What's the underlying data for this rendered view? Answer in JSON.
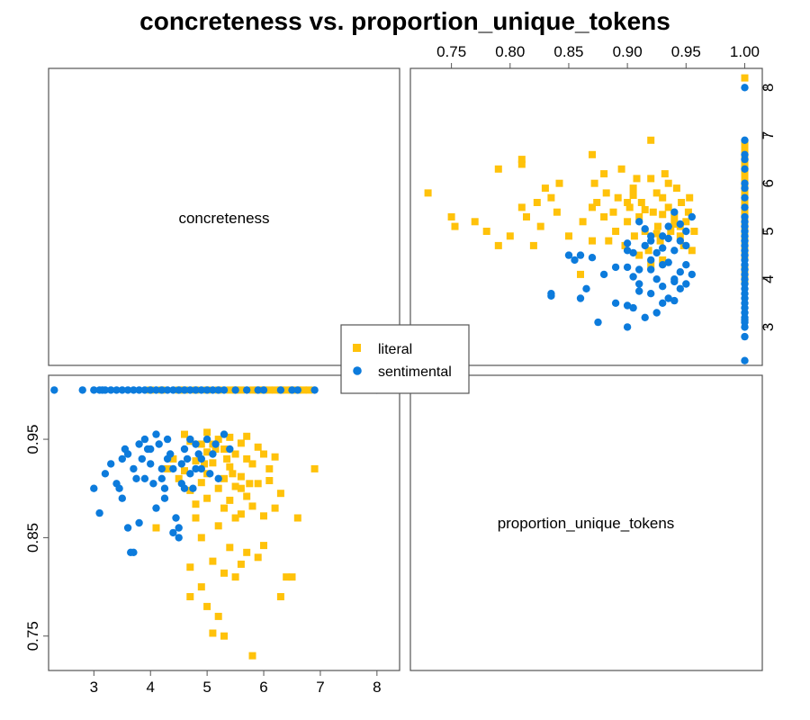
{
  "chart_data": {
    "type": "scatter",
    "title": "concreteness vs. proportion_unique_tokens",
    "variables": [
      "concreteness",
      "proportion_unique_tokens"
    ],
    "axes": {
      "concreteness": {
        "range": [
          2.2,
          8.4
        ],
        "ticks": [
          "3",
          "4",
          "5",
          "6",
          "7",
          "8"
        ]
      },
      "proportion_unique_tokens": {
        "range": [
          0.715,
          1.015
        ],
        "top_ticks": [
          "0.75",
          "0.80",
          "0.85",
          "0.90",
          "0.95",
          "1.00"
        ],
        "left_ticks": [
          "0.75",
          "0.85",
          "0.95"
        ]
      }
    },
    "legend": {
      "placement": "center",
      "entries": [
        "literal",
        "sentimental"
      ]
    },
    "colors": {
      "literal": "#FFC20A",
      "sentimental": "#0C7BDC",
      "frame": "#555555"
    },
    "series": [
      {
        "name": "literal",
        "marker": "square",
        "points": [
          [
            8.2,
            1.0
          ],
          [
            6.8,
            1.0
          ],
          [
            6.7,
            1.0
          ],
          [
            6.6,
            1.0
          ],
          [
            6.5,
            1.0
          ],
          [
            6.4,
            1.0
          ],
          [
            6.3,
            1.0
          ],
          [
            6.2,
            1.0
          ],
          [
            6.1,
            1.0
          ],
          [
            6.0,
            1.0
          ],
          [
            5.9,
            1.0
          ],
          [
            5.8,
            1.0
          ],
          [
            5.6,
            1.0
          ],
          [
            5.5,
            1.0
          ],
          [
            5.4,
            1.0
          ],
          [
            5.2,
            1.0
          ],
          [
            5.0,
            1.0
          ],
          [
            4.8,
            1.0
          ],
          [
            4.6,
            1.0
          ],
          [
            4.5,
            1.0
          ],
          [
            4.2,
            1.0
          ],
          [
            4.0,
            1.0
          ],
          [
            5.8,
            0.73
          ],
          [
            5.3,
            0.75
          ],
          [
            5.1,
            0.753
          ],
          [
            5.2,
            0.77
          ],
          [
            5.0,
            0.78
          ],
          [
            6.3,
            0.79
          ],
          [
            4.7,
            0.79
          ],
          [
            4.9,
            0.8
          ],
          [
            5.5,
            0.81
          ],
          [
            6.4,
            0.81
          ],
          [
            6.5,
            0.81
          ],
          [
            5.3,
            0.814
          ],
          [
            4.7,
            0.82
          ],
          [
            5.6,
            0.823
          ],
          [
            5.1,
            0.826
          ],
          [
            5.9,
            0.83
          ],
          [
            5.7,
            0.835
          ],
          [
            5.4,
            0.84
          ],
          [
            6.0,
            0.842
          ],
          [
            4.9,
            0.85
          ],
          [
            4.1,
            0.86
          ],
          [
            5.2,
            0.862
          ],
          [
            5.5,
            0.87
          ],
          [
            4.8,
            0.87
          ],
          [
            6.6,
            0.87
          ],
          [
            6.0,
            0.872
          ],
          [
            5.6,
            0.874
          ],
          [
            5.3,
            0.88
          ],
          [
            5.8,
            0.882
          ],
          [
            6.2,
            0.88
          ],
          [
            4.8,
            0.884
          ],
          [
            5.4,
            0.888
          ],
          [
            5.0,
            0.89
          ],
          [
            5.7,
            0.892
          ],
          [
            6.3,
            0.895
          ],
          [
            4.7,
            0.898
          ],
          [
            5.2,
            0.9
          ],
          [
            5.5,
            0.902
          ],
          [
            5.9,
            0.905
          ],
          [
            4.9,
            0.906
          ],
          [
            6.1,
            0.908
          ],
          [
            5.3,
            0.91
          ],
          [
            5.6,
            0.912
          ],
          [
            5.0,
            0.915
          ],
          [
            4.6,
            0.918
          ],
          [
            6.9,
            0.92
          ],
          [
            5.4,
            0.922
          ],
          [
            5.8,
            0.925
          ],
          [
            5.1,
            0.926
          ],
          [
            4.8,
            0.928
          ],
          [
            5.7,
            0.93
          ],
          [
            6.2,
            0.932
          ],
          [
            5.5,
            0.935
          ],
          [
            5.0,
            0.937
          ],
          [
            5.3,
            0.94
          ],
          [
            5.9,
            0.942
          ],
          [
            4.9,
            0.945
          ],
          [
            5.6,
            0.946
          ],
          [
            4.7,
            0.948
          ],
          [
            5.2,
            0.95
          ],
          [
            5.4,
            0.952
          ],
          [
            4.6,
            0.955
          ],
          [
            5.0,
            0.957
          ],
          [
            5.7,
            0.953
          ],
          [
            5.1,
            0.945
          ],
          [
            4.4,
            0.93
          ],
          [
            4.5,
            0.91
          ],
          [
            4.3,
            0.92
          ],
          [
            6.0,
            0.935
          ],
          [
            6.1,
            0.92
          ],
          [
            5.6,
            0.9
          ],
          [
            5.35,
            0.93
          ],
          [
            5.15,
            0.94
          ],
          [
            4.95,
            0.925
          ],
          [
            5.45,
            0.915
          ],
          [
            5.75,
            0.905
          ]
        ]
      },
      {
        "name": "sentimental",
        "marker": "circle",
        "points": [
          [
            2.3,
            1.0
          ],
          [
            2.8,
            1.0
          ],
          [
            3.0,
            1.0
          ],
          [
            3.1,
            1.0
          ],
          [
            3.15,
            1.0
          ],
          [
            3.2,
            1.0
          ],
          [
            3.3,
            1.0
          ],
          [
            3.4,
            1.0
          ],
          [
            3.5,
            1.0
          ],
          [
            3.6,
            1.0
          ],
          [
            3.7,
            1.0
          ],
          [
            3.8,
            1.0
          ],
          [
            3.9,
            1.0
          ],
          [
            4.0,
            1.0
          ],
          [
            4.1,
            1.0
          ],
          [
            4.2,
            1.0
          ],
          [
            4.3,
            1.0
          ],
          [
            4.4,
            1.0
          ],
          [
            4.5,
            1.0
          ],
          [
            4.6,
            1.0
          ],
          [
            4.7,
            1.0
          ],
          [
            4.8,
            1.0
          ],
          [
            4.9,
            1.0
          ],
          [
            5.0,
            1.0
          ],
          [
            5.1,
            1.0
          ],
          [
            5.2,
            1.0
          ],
          [
            5.3,
            1.0
          ],
          [
            5.5,
            1.0
          ],
          [
            5.7,
            1.0
          ],
          [
            5.9,
            1.0
          ],
          [
            6.0,
            1.0
          ],
          [
            6.3,
            1.0
          ],
          [
            6.5,
            1.0
          ],
          [
            6.6,
            1.0
          ],
          [
            6.9,
            1.0
          ],
          [
            8.0,
            1.0
          ],
          [
            3.0,
            0.9
          ],
          [
            3.1,
            0.875
          ],
          [
            3.2,
            0.915
          ],
          [
            3.3,
            0.925
          ],
          [
            3.4,
            0.905
          ],
          [
            3.5,
            0.89
          ],
          [
            3.55,
            0.94
          ],
          [
            3.6,
            0.86
          ],
          [
            3.65,
            0.835
          ],
          [
            3.7,
            0.835
          ],
          [
            3.75,
            0.91
          ],
          [
            3.8,
            0.865
          ],
          [
            3.85,
            0.93
          ],
          [
            3.9,
            0.95
          ],
          [
            3.95,
            0.94
          ],
          [
            4.0,
            0.925
          ],
          [
            4.05,
            0.905
          ],
          [
            4.1,
            0.88
          ],
          [
            4.15,
            0.945
          ],
          [
            4.2,
            0.91
          ],
          [
            4.25,
            0.89
          ],
          [
            4.3,
            0.95
          ],
          [
            4.35,
            0.935
          ],
          [
            4.4,
            0.92
          ],
          [
            4.45,
            0.87
          ],
          [
            4.5,
            0.85
          ],
          [
            4.55,
            0.905
          ],
          [
            4.6,
            0.94
          ],
          [
            4.65,
            0.93
          ],
          [
            4.7,
            0.915
          ],
          [
            4.75,
            0.9
          ],
          [
            4.8,
            0.945
          ],
          [
            4.85,
            0.935
          ],
          [
            4.9,
            0.92
          ],
          [
            5.0,
            0.95
          ],
          [
            5.1,
            0.935
          ],
          [
            5.2,
            0.91
          ],
          [
            5.3,
            0.955
          ],
          [
            5.4,
            0.94
          ],
          [
            4.4,
            0.855
          ],
          [
            4.5,
            0.86
          ],
          [
            4.2,
            0.92
          ],
          [
            4.0,
            0.94
          ],
          [
            3.9,
            0.91
          ],
          [
            3.7,
            0.92
          ],
          [
            4.6,
            0.9
          ],
          [
            4.8,
            0.92
          ],
          [
            5.05,
            0.915
          ],
          [
            3.5,
            0.93
          ],
          [
            4.3,
            0.93
          ],
          [
            4.7,
            0.95
          ],
          [
            3.8,
            0.945
          ],
          [
            4.1,
            0.955
          ],
          [
            4.9,
            0.93
          ],
          [
            5.15,
            0.945
          ],
          [
            3.6,
            0.935
          ],
          [
            4.25,
            0.9
          ],
          [
            3.45,
            0.9
          ],
          [
            4.55,
            0.925
          ]
        ]
      }
    ]
  }
}
